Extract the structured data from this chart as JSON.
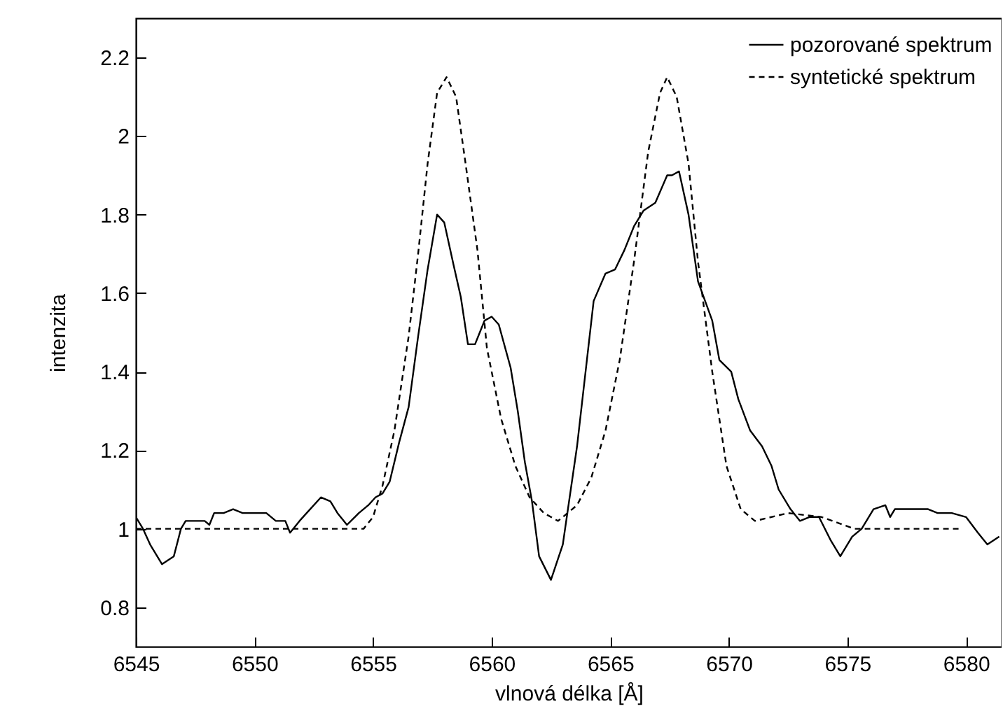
{
  "chart_data": {
    "type": "line",
    "xlabel": "vlnová délka [Å]",
    "ylabel": "intenzita",
    "xlim": [
      6545,
      6581.5
    ],
    "xticks": [
      6545,
      6550,
      6555,
      6560,
      6565,
      6570,
      6575,
      6580
    ],
    "ylim": [
      0.7,
      2.3
    ],
    "yticks": [
      0.8,
      1,
      1.2,
      1.4,
      1.6,
      1.8,
      2,
      2.2
    ],
    "grid": false,
    "legend": "top right",
    "series": [
      {
        "name": "pozorované spektrum",
        "color": "#000000",
        "line_style": "solid",
        "x": [
          6545.0,
          6545.3,
          6545.6,
          6546.1,
          6546.6,
          6546.9,
          6547.1,
          6547.9,
          6548.1,
          6548.3,
          6548.7,
          6549.1,
          6549.5,
          6549.9,
          6550.5,
          6550.9,
          6551.3,
          6551.5,
          6551.9,
          6552.2,
          6552.8,
          6553.2,
          6553.5,
          6553.9,
          6554.4,
          6554.8,
          6555.1,
          6555.4,
          6555.7,
          6556.1,
          6556.5,
          6556.9,
          6557.3,
          6557.7,
          6558.0,
          6558.4,
          6558.7,
          6559.0,
          6559.3,
          6559.5,
          6559.7,
          6560.0,
          6560.3,
          6560.8,
          6561.1,
          6561.4,
          6561.7,
          6562.0,
          6562.5,
          6563.0,
          6563.6,
          6564.3,
          6564.8,
          6565.2,
          6565.6,
          6566.0,
          6566.4,
          6566.9,
          6567.4,
          6567.6,
          6567.9,
          6568.3,
          6568.7,
          6569.3,
          6569.6,
          6570.1,
          6570.4,
          6570.9,
          6571.4,
          6571.8,
          6572.1,
          6572.6,
          6573.0,
          6573.4,
          6573.8,
          6574.3,
          6574.7,
          6575.2,
          6575.6,
          6576.1,
          6576.6,
          6576.8,
          6577.0,
          6577.8,
          6578.4,
          6578.8,
          6579.4,
          6580.0,
          6580.5,
          6580.9,
          6581.4
        ],
        "values": [
          1.03,
          1.0,
          0.96,
          0.91,
          0.93,
          1.0,
          1.02,
          1.02,
          1.01,
          1.04,
          1.04,
          1.05,
          1.04,
          1.04,
          1.04,
          1.02,
          1.02,
          0.99,
          1.02,
          1.04,
          1.08,
          1.07,
          1.04,
          1.01,
          1.04,
          1.06,
          1.08,
          1.09,
          1.12,
          1.22,
          1.31,
          1.49,
          1.66,
          1.8,
          1.78,
          1.67,
          1.59,
          1.47,
          1.47,
          1.5,
          1.53,
          1.54,
          1.52,
          1.41,
          1.3,
          1.17,
          1.07,
          0.93,
          0.87,
          0.96,
          1.21,
          1.58,
          1.65,
          1.66,
          1.71,
          1.77,
          1.81,
          1.83,
          1.9,
          1.9,
          1.91,
          1.8,
          1.63,
          1.53,
          1.43,
          1.4,
          1.33,
          1.25,
          1.21,
          1.16,
          1.1,
          1.05,
          1.02,
          1.03,
          1.03,
          0.97,
          0.93,
          0.98,
          1.0,
          1.05,
          1.06,
          1.03,
          1.05,
          1.05,
          1.05,
          1.04,
          1.04,
          1.03,
          0.99,
          0.96,
          0.98
        ]
      },
      {
        "name": "syntetické spektrum",
        "color": "#000000",
        "line_style": "dashed",
        "x": [
          6545.0,
          6554.6,
          6555.0,
          6555.4,
          6555.9,
          6556.5,
          6556.9,
          6557.3,
          6557.7,
          6558.1,
          6558.5,
          6558.9,
          6559.4,
          6559.8,
          6560.4,
          6561.0,
          6561.6,
          6562.2,
          6562.8,
          6563.6,
          6564.2,
          6564.8,
          6565.4,
          6566.0,
          6566.6,
          6567.1,
          6567.4,
          6567.8,
          6568.3,
          6568.7,
          6569.3,
          6569.9,
          6570.5,
          6571.1,
          6572.5,
          6573.9,
          6575.3,
          6579.8
        ],
        "values": [
          1.0,
          1.0,
          1.03,
          1.11,
          1.25,
          1.49,
          1.7,
          1.93,
          2.11,
          2.15,
          2.1,
          1.93,
          1.71,
          1.46,
          1.28,
          1.16,
          1.08,
          1.04,
          1.02,
          1.06,
          1.13,
          1.25,
          1.43,
          1.68,
          1.96,
          2.11,
          2.15,
          2.1,
          1.93,
          1.68,
          1.4,
          1.16,
          1.05,
          1.02,
          1.04,
          1.03,
          1.0,
          1.0
        ]
      }
    ]
  }
}
